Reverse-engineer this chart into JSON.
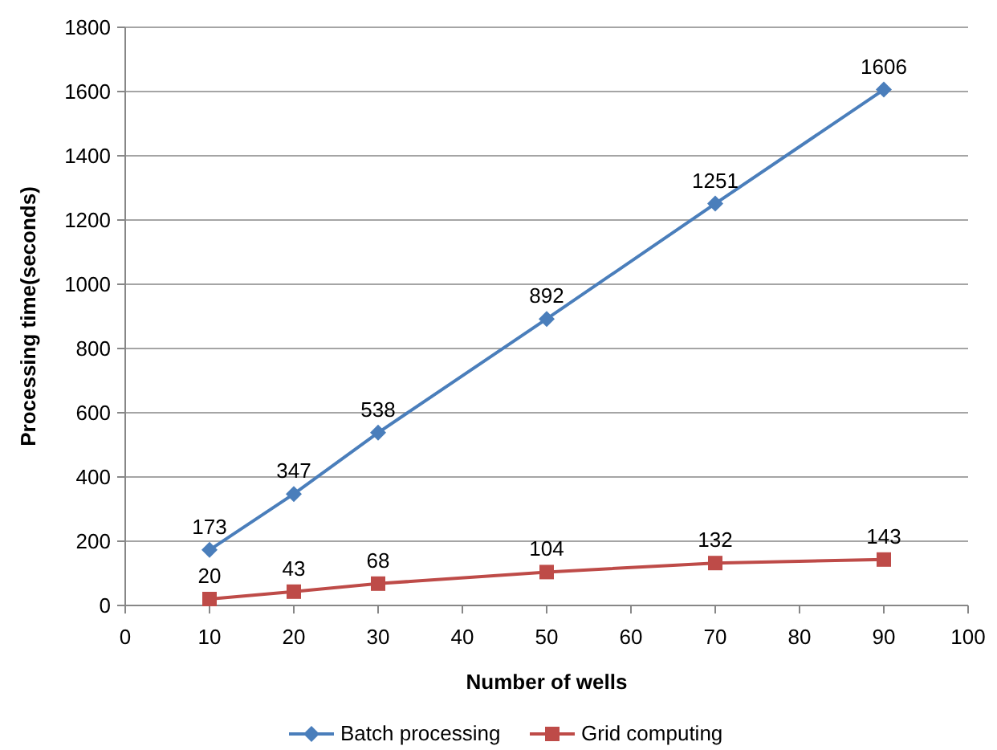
{
  "chart_data": {
    "type": "line",
    "xlabel": "Number of wells",
    "ylabel": "Processing time(seconds)",
    "x": [
      10,
      20,
      30,
      50,
      70,
      90
    ],
    "series": [
      {
        "name": "Batch processing",
        "color": "#4a7ebb",
        "marker": "diamond",
        "values": [
          173,
          347,
          538,
          892,
          1251,
          1606
        ]
      },
      {
        "name": "Grid computing",
        "color": "#be4b48",
        "marker": "square",
        "values": [
          20,
          43,
          68,
          104,
          132,
          143
        ]
      }
    ],
    "xlim": [
      0,
      100
    ],
    "xticks": [
      0,
      10,
      20,
      30,
      40,
      50,
      60,
      70,
      80,
      90,
      100
    ],
    "ylim": [
      0,
      1800
    ],
    "yticks": [
      0,
      200,
      400,
      600,
      800,
      1000,
      1200,
      1400,
      1600,
      1800
    ],
    "grid": "y",
    "legend": "bottom",
    "data_labels": true,
    "line_style": "solid"
  }
}
